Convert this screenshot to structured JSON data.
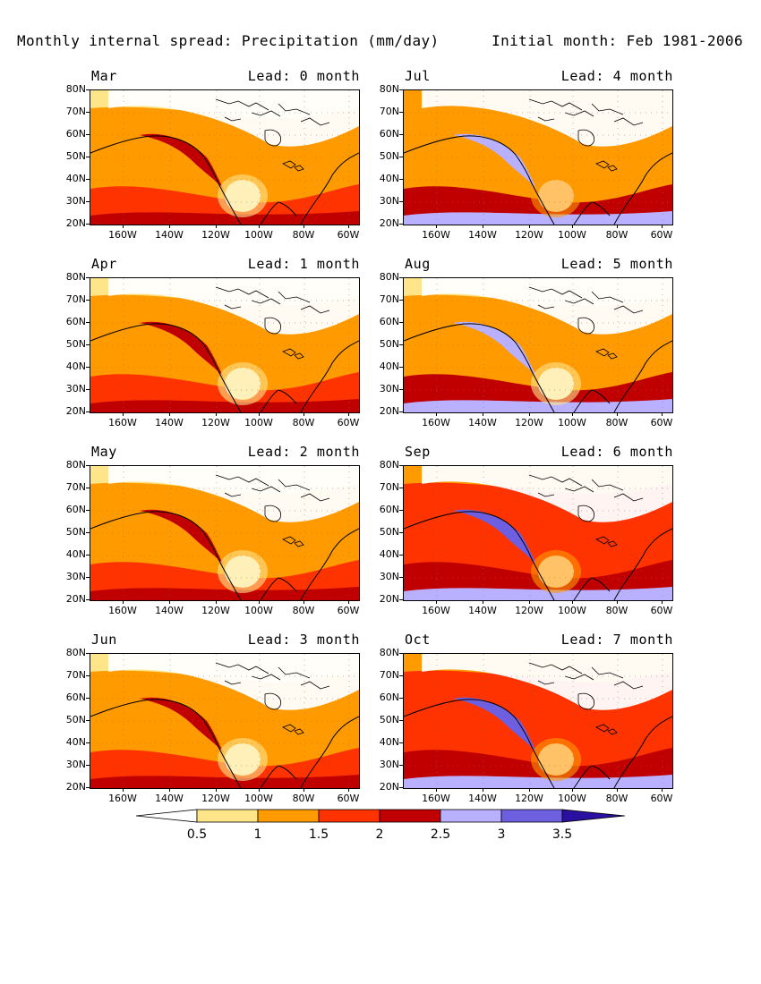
{
  "header": {
    "title_left": "Monthly internal spread: Precipitation (mm/day)",
    "title_right": "Initial month: Feb 1981-2006"
  },
  "map_axes": {
    "lat_labels": [
      "80N",
      "70N",
      "60N",
      "50N",
      "40N",
      "30N",
      "20N"
    ],
    "lon_labels": [
      "160W",
      "140W",
      "120W",
      "100W",
      "80W",
      "60W"
    ]
  },
  "panels": [
    {
      "month": "Mar",
      "lead": "Lead: 0 month"
    },
    {
      "month": "Jul",
      "lead": "Lead: 4 month"
    },
    {
      "month": "Apr",
      "lead": "Lead: 1 month"
    },
    {
      "month": "Aug",
      "lead": "Lead: 5 month"
    },
    {
      "month": "May",
      "lead": "Lead: 2 month"
    },
    {
      "month": "Sep",
      "lead": "Lead: 6 month"
    },
    {
      "month": "Jun",
      "lead": "Lead: 3 month"
    },
    {
      "month": "Oct",
      "lead": "Lead: 7 month"
    }
  ],
  "colorbar": {
    "labels": [
      "0.5",
      "1",
      "1.5",
      "2",
      "2.5",
      "3",
      "3.5"
    ],
    "colors": [
      "#ffffff",
      "#ffe58a",
      "#ff9a00",
      "#ff3300",
      "#c00000",
      "#b9b0ff",
      "#6e5ee0",
      "#2a0fa0"
    ]
  }
}
